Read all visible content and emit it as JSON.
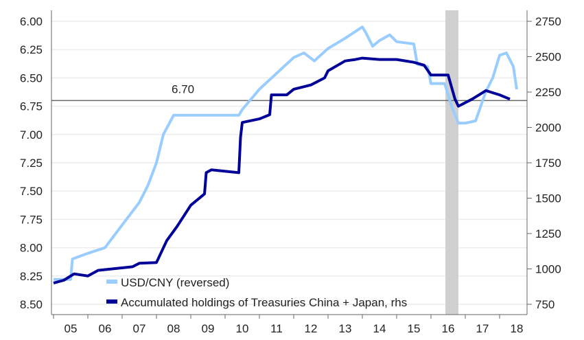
{
  "chart_data": {
    "type": "line",
    "title": "",
    "x_tick_labels": [
      "05",
      "06",
      "07",
      "08",
      "09",
      "10",
      "11",
      "12",
      "13",
      "14",
      "15",
      "16",
      "17",
      "18"
    ],
    "x_range": [
      2004.95,
      2018.95
    ],
    "left_axis": {
      "ticks": [
        "6.00",
        "6.25",
        "6.50",
        "6.75",
        "7.00",
        "7.25",
        "7.50",
        "7.75",
        "8.00",
        "8.25",
        "8.50"
      ],
      "range": [
        6.0,
        8.5
      ],
      "reversed": true
    },
    "right_axis": {
      "ticks": [
        "2750",
        "2500",
        "2250",
        "2000",
        "1750",
        "1500",
        "1250",
        "1000",
        "750"
      ],
      "range": [
        750,
        2750
      ]
    },
    "reference_line": {
      "value": 6.7,
      "label": "6.70"
    },
    "shaded_period": [
      2016.42,
      2016.8
    ],
    "legend": {
      "placement": "bottom-left"
    },
    "series": [
      {
        "name": "USD/CNY (reversed)",
        "axis": "left",
        "color": "#99ccff",
        "x": [
          2005.0,
          2005.5,
          2005.55,
          2006.0,
          2006.5,
          2007.0,
          2007.5,
          2007.75,
          2008.0,
          2008.2,
          2008.5,
          2009.0,
          2010.4,
          2010.5,
          2011.0,
          2011.5,
          2012.0,
          2012.3,
          2012.6,
          2013.0,
          2013.5,
          2014.0,
          2014.1,
          2014.3,
          2014.5,
          2014.8,
          2015.0,
          2015.5,
          2015.6,
          2015.9,
          2016.0,
          2016.4,
          2016.6,
          2016.8,
          2017.0,
          2017.3,
          2017.6,
          2017.8,
          2018.0,
          2018.2,
          2018.4,
          2018.5
        ],
        "y": [
          8.28,
          8.28,
          8.1,
          8.05,
          8.0,
          7.8,
          7.6,
          7.45,
          7.25,
          7.0,
          6.83,
          6.83,
          6.83,
          6.78,
          6.6,
          6.46,
          6.32,
          6.28,
          6.35,
          6.24,
          6.15,
          6.05,
          6.1,
          6.22,
          6.17,
          6.12,
          6.18,
          6.2,
          6.38,
          6.4,
          6.55,
          6.55,
          6.75,
          6.9,
          6.9,
          6.88,
          6.62,
          6.5,
          6.3,
          6.28,
          6.4,
          6.6
        ]
      },
      {
        "name": "Accumulated holdings of Treasuries China + Japan, rhs",
        "axis": "right",
        "color": "#000099",
        "x": [
          2005.0,
          2005.3,
          2005.6,
          2006.0,
          2006.3,
          2006.7,
          2007.3,
          2007.5,
          2008.0,
          2008.3,
          2008.6,
          2009.0,
          2009.4,
          2009.45,
          2009.6,
          2010.4,
          2010.45,
          2010.5,
          2011.0,
          2011.3,
          2011.35,
          2011.8,
          2012.0,
          2012.5,
          2012.9,
          2013.0,
          2013.5,
          2013.8,
          2014.0,
          2014.5,
          2015.0,
          2015.5,
          2015.8,
          2016.0,
          2016.5,
          2016.7,
          2016.8,
          2017.2,
          2017.6,
          2018.0,
          2018.3
        ],
        "y": [
          900,
          920,
          965,
          950,
          990,
          1000,
          1015,
          1040,
          1045,
          1200,
          1300,
          1450,
          1530,
          1680,
          1700,
          1680,
          1930,
          2035,
          2060,
          2090,
          2230,
          2230,
          2270,
          2300,
          2350,
          2400,
          2470,
          2480,
          2490,
          2480,
          2480,
          2460,
          2440,
          2370,
          2370,
          2200,
          2150,
          2200,
          2260,
          2230,
          2200
        ]
      }
    ]
  }
}
